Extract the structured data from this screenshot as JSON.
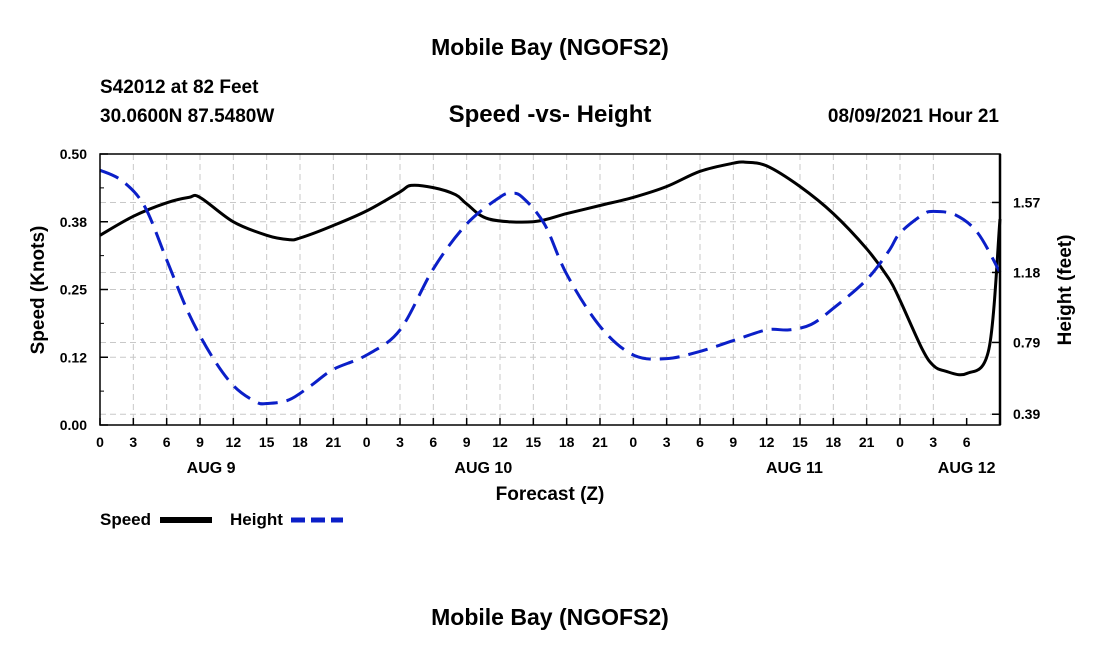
{
  "header": {
    "title": "Mobile Bay (NGOFS2)",
    "station_line": "S42012 at 82 Feet",
    "coords_line": "30.0600N  87.5480W",
    "subtitle": "Speed -vs- Height",
    "datetime": "08/09/2021 Hour 21"
  },
  "footer": {
    "title": "Mobile Bay (NGOFS2)"
  },
  "legend": {
    "speed_label": "Speed",
    "height_label": "Height",
    "speed_color": "#000000",
    "height_color": "#0b1fc8"
  },
  "chart_data": {
    "type": "line",
    "xlabel": "Forecast (Z)",
    "ylabel_left": "Speed (Knots)",
    "ylabel_right": "Height (feet)",
    "x_range_hours": [
      0,
      81
    ],
    "x_ticks": [
      "0",
      "3",
      "6",
      "9",
      "12",
      "15",
      "18",
      "21",
      "0",
      "3",
      "6",
      "9",
      "12",
      "15",
      "18",
      "21",
      "0",
      "3",
      "6",
      "9",
      "12",
      "15",
      "18",
      "21",
      "0",
      "3",
      "6"
    ],
    "day_labels": [
      {
        "label": "AUG 9",
        "hour": 10
      },
      {
        "label": "AUG 10",
        "hour": 34.5
      },
      {
        "label": "AUG 11",
        "hour": 62.5
      },
      {
        "label": "AUG 12",
        "hour": 78
      }
    ],
    "left_axis": {
      "min": 0,
      "max": 0.5,
      "ticks": [
        "0.00",
        "0.12",
        "0.25",
        "0.38",
        "0.50"
      ],
      "tick_values": [
        0,
        0.125,
        0.25,
        0.375,
        0.5
      ]
    },
    "right_axis": {
      "min": 0.33,
      "max": 1.84,
      "ticks": [
        "0.39",
        "0.79",
        "1.18",
        "1.57"
      ],
      "tick_values": [
        0.39,
        0.79,
        1.18,
        1.57
      ]
    },
    "grid": true,
    "series": [
      {
        "name": "Speed",
        "axis": "left",
        "style": "solid",
        "x": [
          0,
          3,
          6,
          8,
          9,
          12,
          15,
          17,
          18,
          21,
          24,
          27,
          28,
          30,
          32,
          33,
          35,
          39,
          42,
          45,
          48,
          51,
          54,
          57,
          58,
          60,
          63,
          66,
          69,
          71,
          72,
          74,
          75,
          76,
          78,
          80,
          81
        ],
        "values": [
          0.35,
          0.385,
          0.41,
          0.42,
          0.42,
          0.375,
          0.35,
          0.342,
          0.345,
          0.368,
          0.395,
          0.43,
          0.442,
          0.438,
          0.425,
          0.408,
          0.38,
          0.375,
          0.39,
          0.405,
          0.42,
          0.44,
          0.468,
          0.483,
          0.485,
          0.478,
          0.44,
          0.39,
          0.325,
          0.27,
          0.23,
          0.14,
          0.11,
          0.1,
          0.095,
          0.14,
          0.38
        ]
      },
      {
        "name": "Height",
        "axis": "right",
        "style": "dashed",
        "x": [
          0,
          2,
          4,
          6,
          8,
          10,
          12,
          14,
          15,
          17,
          19,
          21,
          24,
          27,
          30,
          33,
          36,
          37,
          38,
          40,
          42,
          45,
          48,
          51,
          54,
          57,
          60,
          62,
          64,
          66,
          69,
          71,
          72,
          74,
          75,
          77,
          79,
          81
        ],
        "values": [
          1.75,
          1.69,
          1.55,
          1.25,
          0.95,
          0.72,
          0.55,
          0.46,
          0.45,
          0.47,
          0.55,
          0.64,
          0.72,
          0.86,
          1.2,
          1.45,
          1.6,
          1.62,
          1.6,
          1.45,
          1.17,
          0.88,
          0.72,
          0.7,
          0.74,
          0.8,
          0.86,
          0.86,
          0.89,
          0.98,
          1.14,
          1.3,
          1.4,
          1.5,
          1.52,
          1.5,
          1.4,
          1.18
        ]
      }
    ]
  }
}
